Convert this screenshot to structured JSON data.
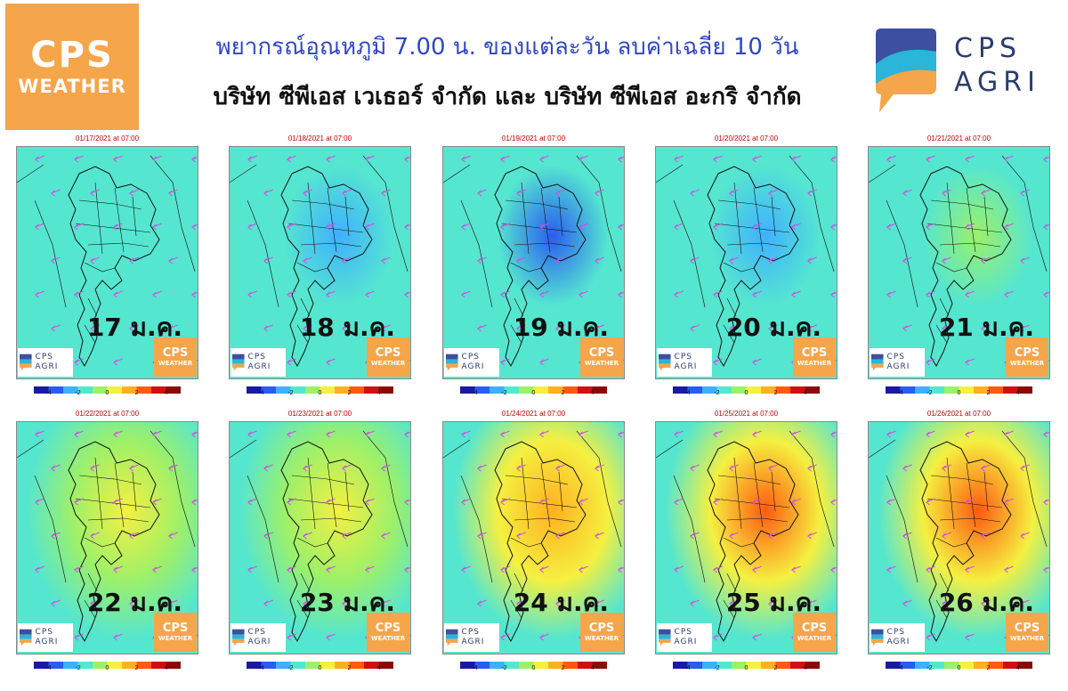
{
  "header": {
    "title": "พยากรณ์อุณหภูมิ 7.00 น. ของแต่ละวัน ลบค่าเฉลี่ย 10 วัน",
    "subtitle": "บริษัท ซีพีเอส เวเธอร์ จำกัด และ บริษัท ซีพีเอส อะกริ จำกัด",
    "logo_weather_big": "CPS",
    "logo_weather_small": "WEATHER",
    "logo_agri_line1": "CPS",
    "logo_agri_line2": "AGRI"
  },
  "colorbar": {
    "ticks": [
      "-4",
      "-2",
      "0",
      "2",
      "4"
    ],
    "range": [
      -5,
      5
    ],
    "colors": [
      "#1a1aa0",
      "#2a5cf0",
      "#3fb0ff",
      "#55e6d0",
      "#9cf06a",
      "#f5f040",
      "#ffb020",
      "#ff5a10",
      "#d01010",
      "#8a0a0a"
    ]
  },
  "panels": [
    {
      "date": "01/17/2021 at 07:00",
      "label": "17 ม.ค.",
      "anomaly": -0.6
    },
    {
      "date": "01/18/2021 at 07:00",
      "label": "18 ม.ค.",
      "anomaly": -2.4
    },
    {
      "date": "01/19/2021 at 07:00",
      "label": "19 ม.ค.",
      "anomaly": -3.6
    },
    {
      "date": "01/20/2021 at 07:00",
      "label": "20 ม.ค.",
      "anomaly": -1.8
    },
    {
      "date": "01/21/2021 at 07:00",
      "label": "21 ม.ค.",
      "anomaly": -0.4
    },
    {
      "date": "01/22/2021 at 07:00",
      "label": "22 ม.ค.",
      "anomaly": 0.8
    },
    {
      "date": "01/23/2021 at 07:00",
      "label": "23 ม.ค.",
      "anomaly": 1.6
    },
    {
      "date": "01/24/2021 at 07:00",
      "label": "24 ม.ค.",
      "anomaly": 2.4
    },
    {
      "date": "01/25/2021 at 07:00",
      "label": "25 ม.ค.",
      "anomaly": 3.2
    },
    {
      "date": "01/26/2021 at 07:00",
      "label": "26 ม.ค.",
      "anomaly": 3.6
    }
  ],
  "mini_logos": {
    "agri": "CPS AGRI",
    "weather_big": "CPS",
    "weather_small": "WEATHER"
  }
}
